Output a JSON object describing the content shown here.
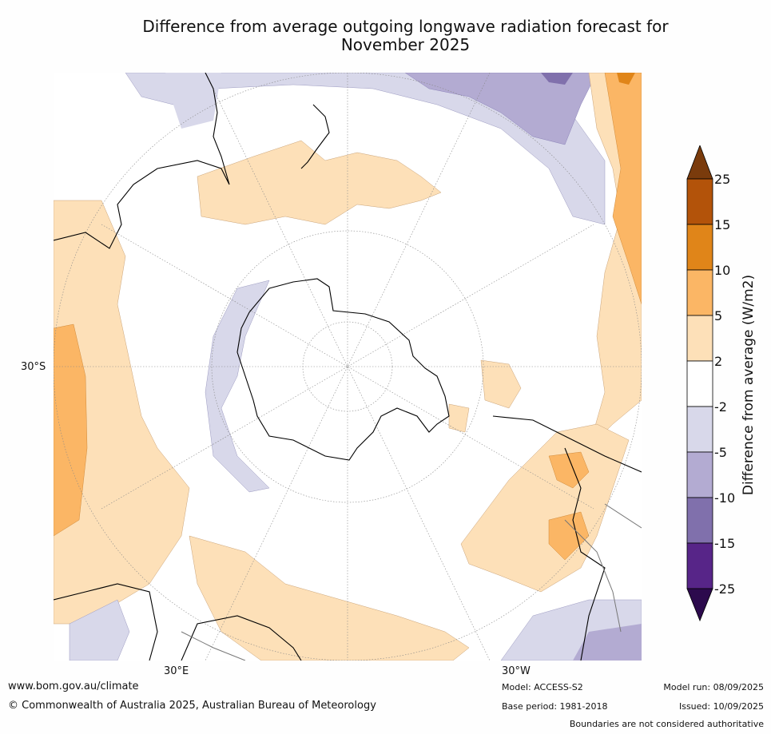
{
  "title_line1": "Difference from average outgoing longwave radiation forecast for",
  "title_line2": "November 2025",
  "map": {
    "projection": "south-polar-stereographic",
    "lat_label": "30°S",
    "lon_labels": [
      "30°E",
      "30°W"
    ]
  },
  "colorbar": {
    "label": "Difference from average (W/m2)",
    "ticks": [
      "25",
      "15",
      "10",
      "5",
      "2",
      "-2",
      "-5",
      "-10",
      "-15",
      "-25"
    ],
    "colors": [
      "#7a3b0c",
      "#b3530a",
      "#e08519",
      "#fbb665",
      "#fde0b8",
      "#ffffff",
      "#d8d8ea",
      "#b3abd2",
      "#8070ac",
      "#572588",
      "#2c0a4d"
    ]
  },
  "footer": {
    "url": "www.bom.gov.au/climate",
    "copyright": "© Commonwealth of Australia 2025, Australian Bureau of Meteorology",
    "model": "Model: ACCESS-S2",
    "base_period": "Base period: 1981-2018",
    "model_run": "Model run: 08/09/2025",
    "issued": "Issued: 10/09/2025",
    "disclaimer": "Boundaries are not considered authoritative"
  }
}
